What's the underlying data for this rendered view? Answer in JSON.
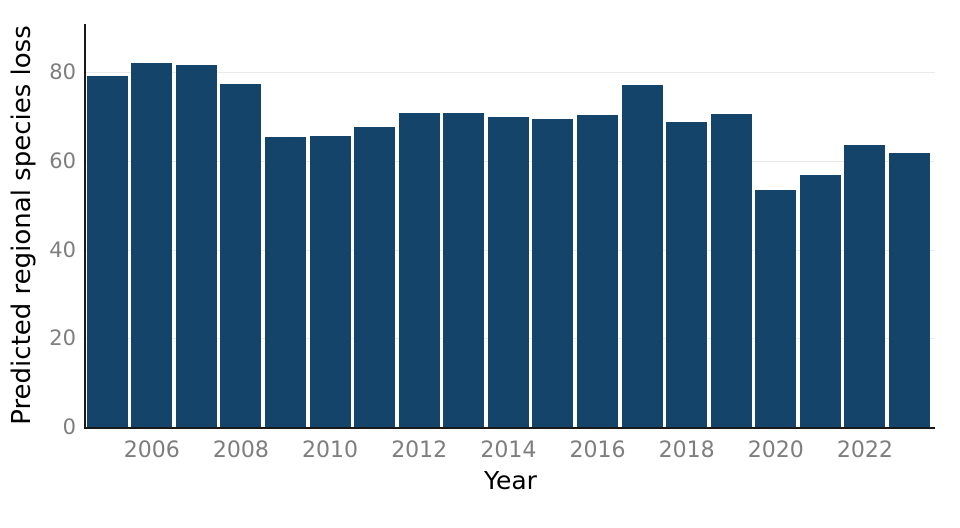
{
  "chart_data": {
    "type": "bar",
    "title": "",
    "xlabel": "Year",
    "ylabel": "Predicted regional species loss",
    "categories": [
      2005,
      2006,
      2007,
      2008,
      2009,
      2010,
      2011,
      2012,
      2013,
      2014,
      2015,
      2016,
      2017,
      2018,
      2019,
      2020,
      2021,
      2022,
      2023
    ],
    "values": [
      79.0,
      82.0,
      81.5,
      77.2,
      65.4,
      65.6,
      67.5,
      70.8,
      70.8,
      69.9,
      69.4,
      70.4,
      77.1,
      68.8,
      70.6,
      53.5,
      56.8,
      63.6,
      61.7
    ],
    "ylim": [
      0,
      90.8
    ],
    "yticks": [
      0,
      20,
      40,
      60,
      80
    ],
    "xtick_labels": [
      "2006",
      "2008",
      "2010",
      "2012",
      "2014",
      "2016",
      "2018",
      "2020",
      "2022"
    ],
    "legend": null,
    "grid": "horizontal-only",
    "colors": {
      "bar": "#144469",
      "grid": "#eaeaea",
      "axis": "#1a1a1a",
      "tick_label": "#7e7e7e",
      "axis_title": "#000000",
      "background": "#ffffff"
    }
  }
}
